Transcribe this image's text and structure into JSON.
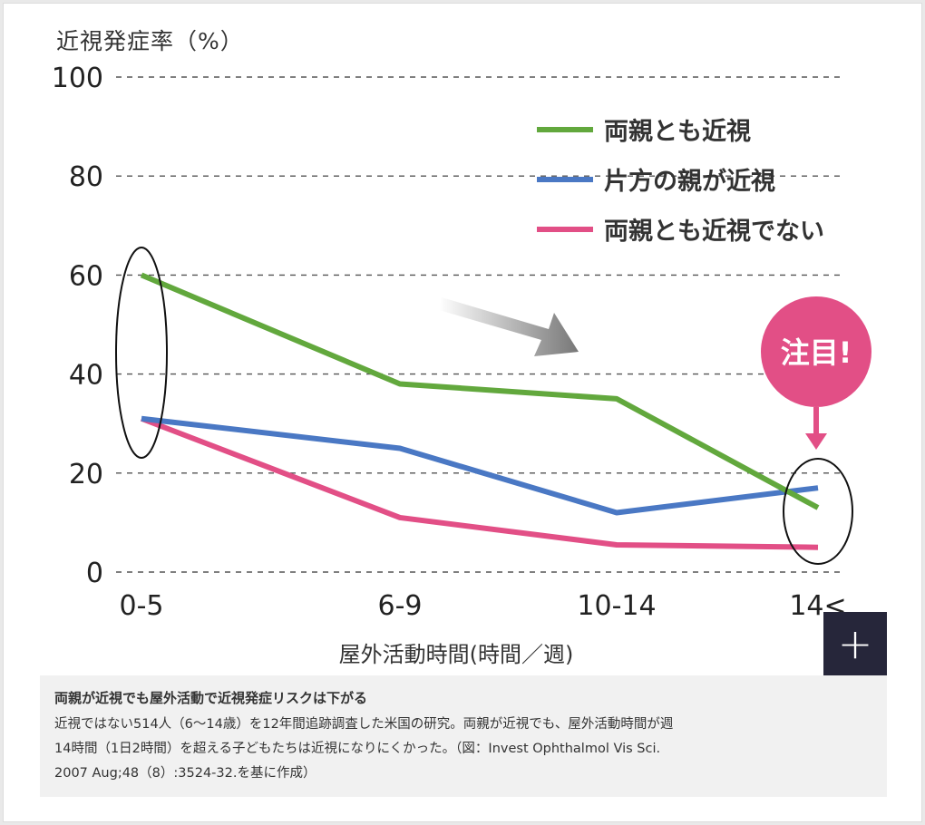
{
  "chart_data": {
    "type": "line",
    "ylabel": "近視発症率（%）",
    "xlabel": "屋外活動時間(時間／週)",
    "categories": [
      "0-5",
      "6-9",
      "10-14",
      "14<"
    ],
    "ylim": [
      0,
      100
    ],
    "yticks": [
      0,
      20,
      40,
      60,
      80,
      100
    ],
    "grid": true,
    "legend_position": "top-right",
    "series": [
      {
        "name": "両親とも近視",
        "color": "#62a83d",
        "values": [
          60,
          38,
          35,
          13
        ]
      },
      {
        "name": "片方の親が近視",
        "color": "#4a78c4",
        "values": [
          31,
          25,
          12,
          17
        ]
      },
      {
        "name": "両親とも近視でない",
        "color": "#e24f86",
        "values": [
          31,
          11,
          5.5,
          5
        ]
      }
    ],
    "annotations": {
      "badge_text": "注目!",
      "badge_color": "#e24f86",
      "arrow_color": "#7a7a7a"
    }
  },
  "ui": {
    "zoom_button_label": "+"
  },
  "caption": {
    "title": "両親が近視でも屋外活動で近視発症リスクは下がる",
    "lines": [
      "近視ではない514人（6〜14歳）を12年間追跡調査した米国の研究。両親が近視でも、屋外活動時間が週",
      "14時間（1日2時間）を超える子どもたちは近視になりにくかった。（図：Invest Ophthalmol Vis Sci.",
      "2007 Aug;48（8）:3524-32.を基に作成）"
    ]
  }
}
